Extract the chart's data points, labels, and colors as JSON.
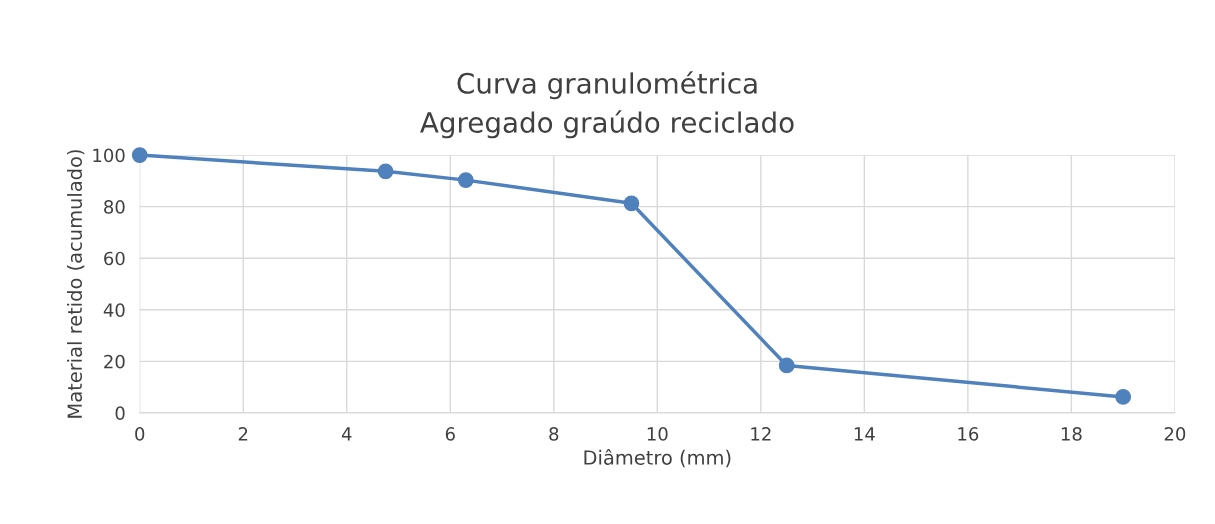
{
  "chart_data": {
    "type": "line",
    "title": "Curva granulométrica\nAgregado graúdo reciclado",
    "xlabel": "Diâmetro (mm)",
    "ylabel": "Material retido (acumulado)",
    "x": [
      0,
      4.75,
      6.3,
      9.5,
      12.5,
      19
    ],
    "series": [
      {
        "color": "#4f81bd",
        "values": [
          100,
          93.7,
          90.3,
          81.3,
          18.4,
          6.2
        ]
      }
    ],
    "xlim": [
      0,
      20
    ],
    "xticks": [
      0,
      2,
      4,
      6,
      8,
      10,
      12,
      14,
      16,
      18,
      20
    ],
    "ylim": [
      0,
      100
    ],
    "yticks": [
      0,
      20,
      40,
      60,
      80,
      100
    ],
    "grid": true,
    "marker": "circle",
    "line_style": "solid",
    "legend": false
  }
}
